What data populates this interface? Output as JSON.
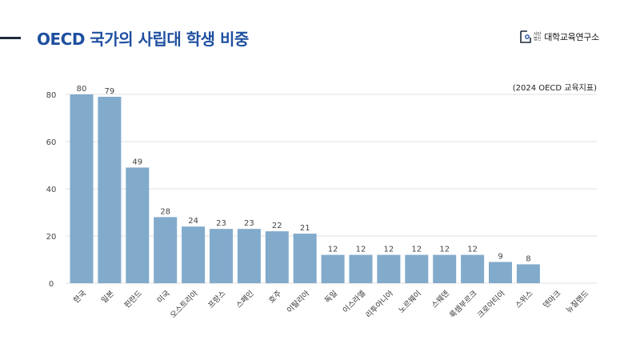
{
  "header": {
    "title": "OECD 국가의 사립대 학생 비중",
    "logo": {
      "small_line1": "사단",
      "small_line2": "법인",
      "name": "대학교육연구소",
      "icon": "institute-logo-icon"
    }
  },
  "colors": {
    "bar": "#82aacb",
    "title": "#1f4fa0",
    "grid": "#e2e2e2"
  },
  "chart_data": {
    "type": "bar",
    "annotation": "(2024 OECD 교육지표)",
    "categories": [
      "한국",
      "일본",
      "핀란드",
      "미국",
      "오스트리아",
      "프랑스",
      "스페인",
      "호주",
      "이탈리아",
      "독일",
      "이스라엘",
      "리투아니아",
      "노르웨이",
      "스웨덴",
      "룩셈부르크",
      "크로아티아",
      "스위스",
      "덴마크",
      "뉴질랜드"
    ],
    "values": [
      80,
      79,
      49,
      28,
      24,
      23,
      23,
      22,
      21,
      12,
      12,
      12,
      12,
      12,
      12,
      9,
      8,
      null,
      null
    ],
    "value_labels": [
      "80",
      "79",
      "49",
      "28",
      "24",
      "23",
      "23",
      "22",
      "21",
      "12",
      "12",
      "12",
      "12",
      "12",
      "12",
      "9",
      "8",
      "",
      ""
    ],
    "ylim": [
      0,
      80
    ],
    "yticks": [
      0,
      20,
      40,
      60,
      80
    ],
    "ytick_labels": [
      "0",
      "20",
      "40",
      "60",
      "80"
    ],
    "grid": true,
    "legend": "none"
  }
}
